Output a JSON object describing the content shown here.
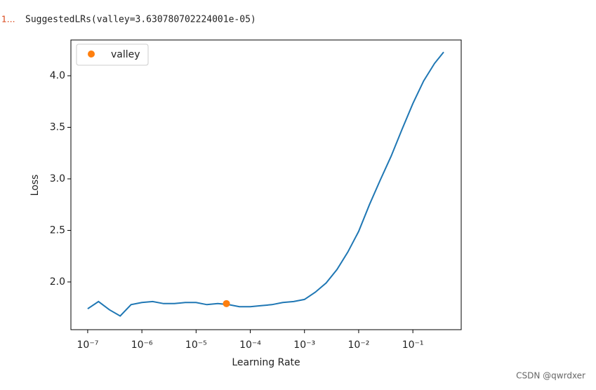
{
  "output_prompt": "1…",
  "output_text": "SuggestedLRs(valley=3.630780702224001e-05)",
  "watermark": "CSDN @qwrdxer",
  "chart_data": {
    "type": "line",
    "xscale": "log",
    "xlabel": "Learning Rate",
    "ylabel": "Loss",
    "x": [
      1e-07,
      1.58e-07,
      2.51e-07,
      3.98e-07,
      6.31e-07,
      1e-06,
      1.58e-06,
      2.51e-06,
      3.98e-06,
      6.31e-06,
      1e-05,
      1.58e-05,
      2.51e-05,
      3.98e-05,
      6.31e-05,
      0.0001,
      0.000158,
      0.000251,
      0.000398,
      0.000631,
      0.001,
      0.00158,
      0.00251,
      0.00398,
      0.00631,
      0.01,
      0.0158,
      0.0251,
      0.0398,
      0.0631,
      0.1,
      0.158,
      0.251,
      0.37
    ],
    "series": [
      {
        "color": "#1f77b4",
        "values": [
          1.74,
          1.81,
          1.73,
          1.67,
          1.78,
          1.8,
          1.81,
          1.79,
          1.79,
          1.8,
          1.8,
          1.78,
          1.79,
          1.78,
          1.76,
          1.76,
          1.77,
          1.78,
          1.8,
          1.81,
          1.83,
          1.9,
          1.99,
          2.12,
          2.29,
          2.49,
          2.75,
          2.99,
          3.22,
          3.48,
          3.73,
          3.95,
          4.12,
          4.23
        ]
      }
    ],
    "valley": {
      "name": "valley",
      "x": 3.630780702224001e-05,
      "y": 1.79,
      "color": "#ff7f0e"
    },
    "legend": "upper left",
    "xlim": [
      4.9e-08,
      0.78
    ],
    "ylim": [
      1.537,
      4.347
    ],
    "xticks": [
      {
        "value": 1e-07,
        "label": "10⁻⁷"
      },
      {
        "value": 1e-06,
        "label": "10⁻⁶"
      },
      {
        "value": 1e-05,
        "label": "10⁻⁵"
      },
      {
        "value": 0.0001,
        "label": "10⁻⁴"
      },
      {
        "value": 0.001,
        "label": "10⁻³"
      },
      {
        "value": 0.01,
        "label": "10⁻²"
      },
      {
        "value": 0.1,
        "label": "10⁻¹"
      }
    ],
    "yticks": [
      {
        "value": 2,
        "label": "2.0"
      },
      {
        "value": 2.5,
        "label": "2.5"
      },
      {
        "value": 3,
        "label": "3.0"
      },
      {
        "value": 3.5,
        "label": "3.5"
      },
      {
        "value": 4,
        "label": "4.0"
      }
    ]
  }
}
